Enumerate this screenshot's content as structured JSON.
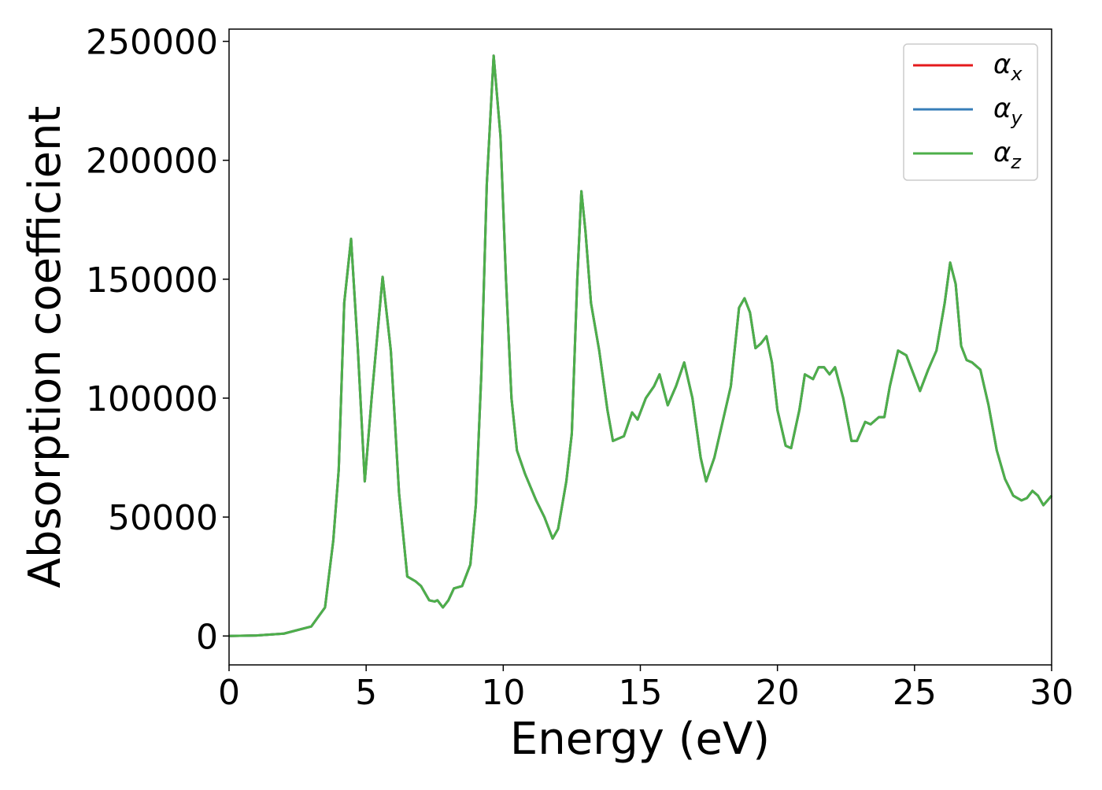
{
  "chart_data": {
    "type": "line",
    "xlabel": "Energy (eV)",
    "ylabel": "Absorption coefficient",
    "x": [
      0,
      1,
      2,
      3,
      3.5,
      3.8,
      4.0,
      4.2,
      4.45,
      4.7,
      4.95,
      5.2,
      5.6,
      5.9,
      6.2,
      6.5,
      6.8,
      7.0,
      7.3,
      7.5,
      7.6,
      7.8,
      8.0,
      8.2,
      8.5,
      8.8,
      9.0,
      9.2,
      9.4,
      9.65,
      9.9,
      10.1,
      10.3,
      10.5,
      10.8,
      11.2,
      11.5,
      11.8,
      12.0,
      12.3,
      12.5,
      12.7,
      12.85,
      13.0,
      13.2,
      13.5,
      13.8,
      14.0,
      14.4,
      14.7,
      14.9,
      15.2,
      15.5,
      15.7,
      16.0,
      16.3,
      16.6,
      16.9,
      17.2,
      17.4,
      17.7,
      18.0,
      18.3,
      18.6,
      18.8,
      19.0,
      19.2,
      19.4,
      19.6,
      19.8,
      20.0,
      20.3,
      20.5,
      20.8,
      21.0,
      21.3,
      21.5,
      21.7,
      21.9,
      22.1,
      22.4,
      22.7,
      22.9,
      23.2,
      23.4,
      23.7,
      23.9,
      24.1,
      24.4,
      24.7,
      24.9,
      25.2,
      25.5,
      25.8,
      26.1,
      26.3,
      26.5,
      26.7,
      26.9,
      27.1,
      27.4,
      27.7,
      28.0,
      28.3,
      28.6,
      28.9,
      29.1,
      29.3,
      29.5,
      29.7,
      30.0
    ],
    "series": [
      {
        "name": "αx",
        "color": "#e41a1c",
        "values": [
          0,
          200,
          1000,
          4000,
          12000,
          40000,
          70000,
          140000,
          167000,
          120000,
          65000,
          100000,
          151000,
          120000,
          60000,
          25000,
          23000,
          21000,
          15000,
          14500,
          15000,
          12000,
          15000,
          20000,
          21000,
          30000,
          55000,
          110000,
          190000,
          244000,
          210000,
          150000,
          100000,
          78000,
          68000,
          57000,
          50000,
          41000,
          45000,
          65000,
          85000,
          150000,
          187000,
          170000,
          140000,
          120000,
          95000,
          82000,
          84000,
          94000,
          91000,
          100000,
          105000,
          110000,
          97000,
          105000,
          115000,
          100000,
          75000,
          65000,
          75000,
          90000,
          105000,
          138000,
          142000,
          136000,
          121000,
          123000,
          126000,
          115000,
          95000,
          80000,
          79000,
          95000,
          110000,
          108000,
          113000,
          113000,
          110000,
          113000,
          100000,
          82000,
          82000,
          90000,
          89000,
          92000,
          92000,
          105000,
          120000,
          118000,
          112000,
          103000,
          112000,
          120000,
          140000,
          157000,
          148000,
          122000,
          116000,
          115000,
          112000,
          97000,
          78000,
          66000,
          59000,
          57000,
          58000,
          61000,
          59000,
          55000,
          59000
        ]
      },
      {
        "name": "αy",
        "color": "#377eb8",
        "values": [
          0,
          200,
          1000,
          4000,
          12000,
          40000,
          70000,
          140000,
          167000,
          120000,
          65000,
          100000,
          151000,
          120000,
          60000,
          25000,
          23000,
          21000,
          15000,
          14500,
          15000,
          12000,
          15000,
          20000,
          21000,
          30000,
          55000,
          110000,
          190000,
          244000,
          210000,
          150000,
          100000,
          78000,
          68000,
          57000,
          50000,
          41000,
          45000,
          65000,
          85000,
          150000,
          187000,
          170000,
          140000,
          120000,
          95000,
          82000,
          84000,
          94000,
          91000,
          100000,
          105000,
          110000,
          97000,
          105000,
          115000,
          100000,
          75000,
          65000,
          75000,
          90000,
          105000,
          138000,
          142000,
          136000,
          121000,
          123000,
          126000,
          115000,
          95000,
          80000,
          79000,
          95000,
          110000,
          108000,
          113000,
          113000,
          110000,
          113000,
          100000,
          82000,
          82000,
          90000,
          89000,
          92000,
          92000,
          105000,
          120000,
          118000,
          112000,
          103000,
          112000,
          120000,
          140000,
          157000,
          148000,
          122000,
          116000,
          115000,
          112000,
          97000,
          78000,
          66000,
          59000,
          57000,
          58000,
          61000,
          59000,
          55000,
          59000
        ]
      },
      {
        "name": "αz",
        "color": "#4daf4a",
        "values": [
          0,
          200,
          1000,
          4000,
          12000,
          40000,
          70000,
          140000,
          167000,
          120000,
          65000,
          100000,
          151000,
          120000,
          60000,
          25000,
          23000,
          21000,
          15000,
          14500,
          15000,
          12000,
          15000,
          20000,
          21000,
          30000,
          55000,
          110000,
          190000,
          244000,
          210000,
          150000,
          100000,
          78000,
          68000,
          57000,
          50000,
          41000,
          45000,
          65000,
          85000,
          150000,
          187000,
          170000,
          140000,
          120000,
          95000,
          82000,
          84000,
          94000,
          91000,
          100000,
          105000,
          110000,
          97000,
          105000,
          115000,
          100000,
          75000,
          65000,
          75000,
          90000,
          105000,
          138000,
          142000,
          136000,
          121000,
          123000,
          126000,
          115000,
          95000,
          80000,
          79000,
          95000,
          110000,
          108000,
          113000,
          113000,
          110000,
          113000,
          100000,
          82000,
          82000,
          90000,
          89000,
          92000,
          92000,
          105000,
          120000,
          118000,
          112000,
          103000,
          112000,
          120000,
          140000,
          157000,
          148000,
          122000,
          116000,
          115000,
          112000,
          97000,
          78000,
          66000,
          59000,
          57000,
          58000,
          61000,
          59000,
          55000,
          59000
        ]
      }
    ],
    "xlim": [
      0,
      30
    ],
    "xticks": [
      0,
      5,
      10,
      15,
      20,
      25,
      30
    ],
    "ylim": [
      -12150,
      255150
    ],
    "yticks": [
      0,
      50000,
      100000,
      150000,
      200000,
      250000
    ],
    "grid": false,
    "legend": "upper right"
  }
}
